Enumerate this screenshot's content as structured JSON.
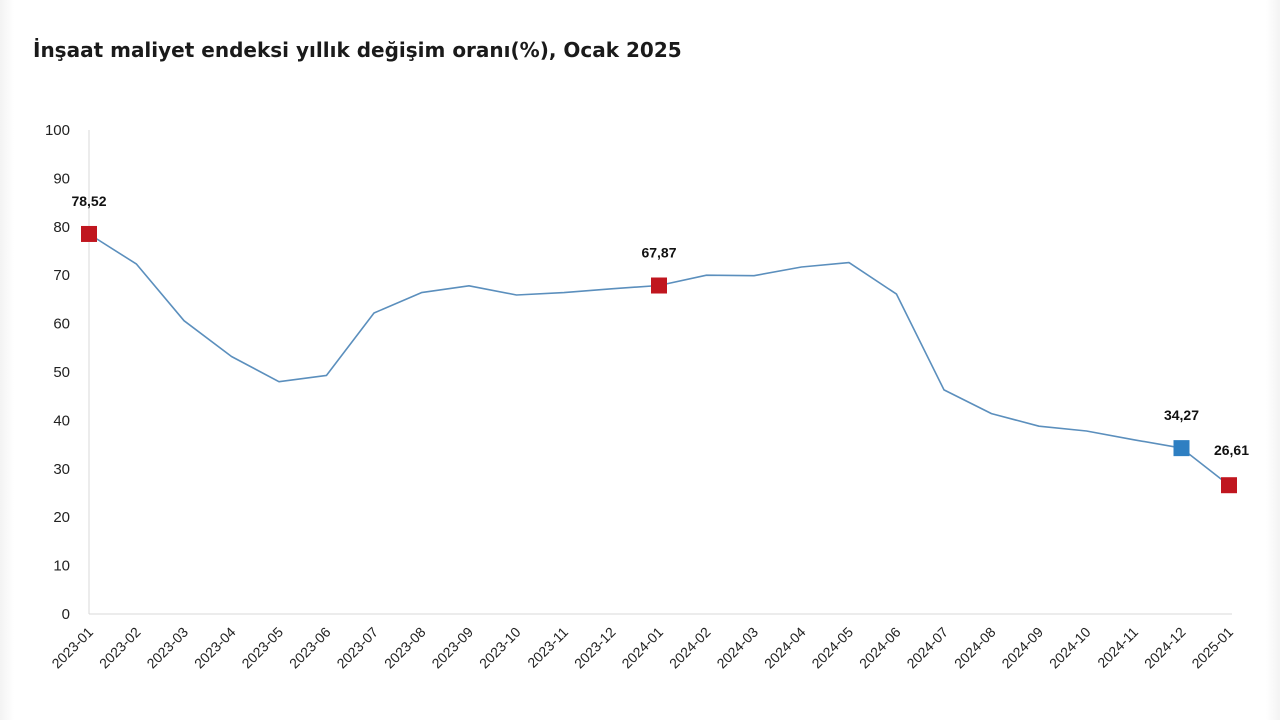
{
  "chart_data": {
    "type": "line",
    "title": "İnşaat maliyet endeksi yıllık değişim oranı(%), Ocak 2025",
    "xlabel": "",
    "ylabel": "",
    "ylim": [
      0,
      100
    ],
    "yticks": [
      0,
      10,
      20,
      30,
      40,
      50,
      60,
      70,
      80,
      90,
      100
    ],
    "grid": false,
    "legend": "none",
    "line_color": "#5b8fbd",
    "categories": [
      "2023-01",
      "2023-02",
      "2023-03",
      "2023-04",
      "2023-05",
      "2023-06",
      "2023-07",
      "2023-08",
      "2023-09",
      "2023-10",
      "2023-11",
      "2023-12",
      "2024-01",
      "2024-02",
      "2024-03",
      "2024-04",
      "2024-05",
      "2024-06",
      "2024-07",
      "2024-08",
      "2024-09",
      "2024-10",
      "2024-11",
      "2024-12",
      "2025-01"
    ],
    "series": [
      {
        "values": [
          78.52,
          72.3,
          60.6,
          53.2,
          48.0,
          49.3,
          62.2,
          66.4,
          67.8,
          65.9,
          66.4,
          67.2,
          67.87,
          70.0,
          69.9,
          71.7,
          72.6,
          66.1,
          46.3,
          41.4,
          38.8,
          37.8,
          36.0,
          34.27,
          26.61
        ]
      }
    ],
    "highlights": [
      {
        "index": 0,
        "label": "78,52",
        "color": "#c0161f"
      },
      {
        "index": 12,
        "label": "67,87",
        "color": "#c0161f"
      },
      {
        "index": 23,
        "label": "34,27",
        "color": "#2e7fc2"
      },
      {
        "index": 24,
        "label": "26,61",
        "color": "#c0161f"
      }
    ]
  }
}
